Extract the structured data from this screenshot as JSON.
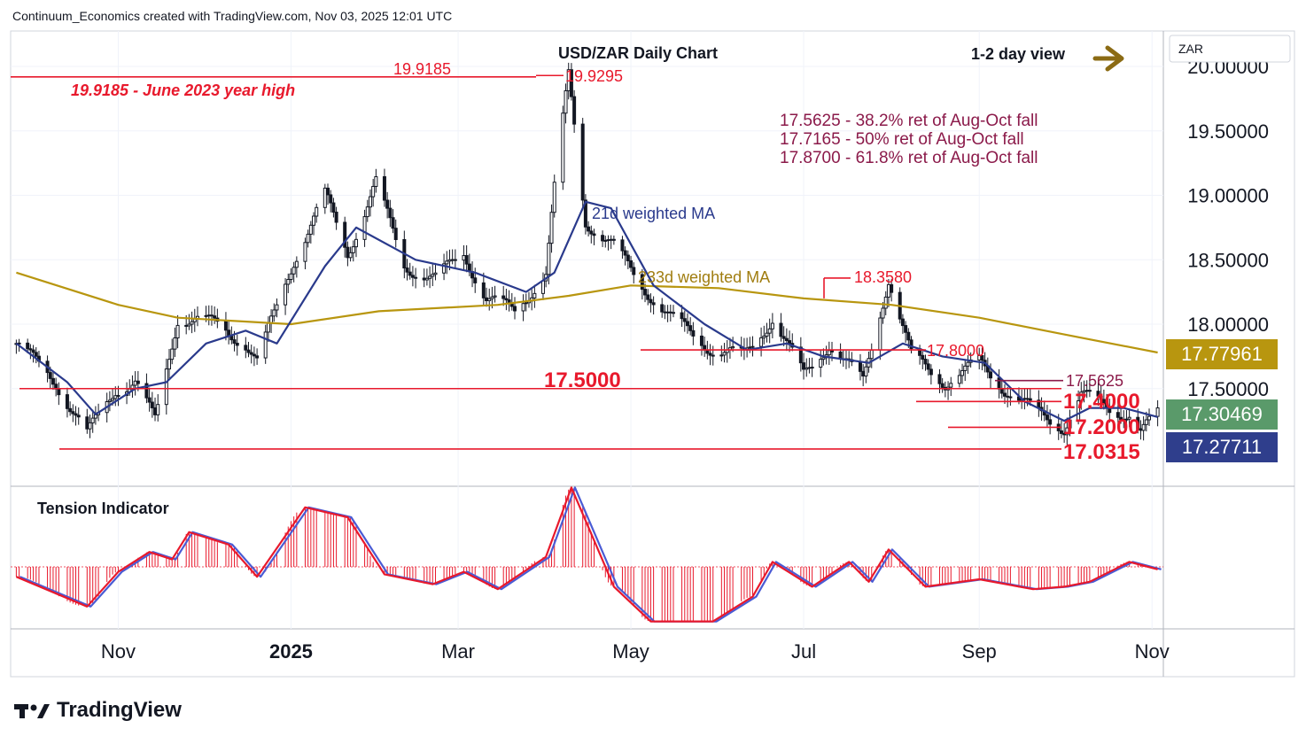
{
  "header": {
    "attribution": "Continuum_Economics created with TradingView.com, Nov 03, 2025 12:01 UTC"
  },
  "chart_data": {
    "type": "candlestick",
    "title": "USD/ZAR Daily Chart",
    "view_label": "1-2 day view",
    "currency": "ZAR",
    "y_ticks": [
      "20.00000",
      "19.50000",
      "19.00000",
      "18.50000",
      "18.00000",
      "17.50000"
    ],
    "x_ticks": [
      "Nov",
      "2025",
      "Mar",
      "May",
      "Jul",
      "Sep",
      "Nov"
    ],
    "ylim": [
      16.8,
      20.1
    ],
    "price_series": [
      {
        "date": "2024-09-26",
        "close": 17.85
      },
      {
        "date": "2024-10-10",
        "close": 17.55
      },
      {
        "date": "2024-10-21",
        "close": 17.14
      },
      {
        "date": "2024-10-31",
        "close": 17.5
      },
      {
        "date": "2024-11-07",
        "close": 17.55
      },
      {
        "date": "2024-11-14",
        "close": 17.25
      },
      {
        "date": "2024-11-22",
        "close": 18.05
      },
      {
        "date": "2024-12-06",
        "close": 18.0
      },
      {
        "date": "2024-12-16",
        "close": 17.85
      },
      {
        "date": "2024-12-20",
        "close": 17.7
      },
      {
        "date": "2025-01-02",
        "close": 18.5
      },
      {
        "date": "2025-01-13",
        "close": 19.0
      },
      {
        "date": "2025-01-21",
        "close": 18.55
      },
      {
        "date": "2025-01-31",
        "close": 19.1
      },
      {
        "date": "2025-02-10",
        "close": 18.45
      },
      {
        "date": "2025-02-21",
        "close": 18.35
      },
      {
        "date": "2025-03-03",
        "close": 18.55
      },
      {
        "date": "2025-03-11",
        "close": 18.2
      },
      {
        "date": "2025-03-21",
        "close": 18.1
      },
      {
        "date": "2025-04-01",
        "close": 18.4
      },
      {
        "date": "2025-04-04",
        "close": 19.05
      },
      {
        "date": "2025-04-09",
        "close": 19.93
      },
      {
        "date": "2025-04-15",
        "close": 18.8
      },
      {
        "date": "2025-04-25",
        "close": 18.6
      },
      {
        "date": "2025-05-05",
        "close": 18.3
      },
      {
        "date": "2025-05-15",
        "close": 18.05
      },
      {
        "date": "2025-05-30",
        "close": 17.8
      },
      {
        "date": "2025-06-10",
        "close": 17.75
      },
      {
        "date": "2025-06-20",
        "close": 18.05
      },
      {
        "date": "2025-07-01",
        "close": 17.6
      },
      {
        "date": "2025-07-10",
        "close": 17.85
      },
      {
        "date": "2025-07-22",
        "close": 17.55
      },
      {
        "date": "2025-07-31",
        "close": 18.36
      },
      {
        "date": "2025-08-08",
        "close": 17.75
      },
      {
        "date": "2025-08-20",
        "close": 17.55
      },
      {
        "date": "2025-09-01",
        "close": 17.7
      },
      {
        "date": "2025-09-10",
        "close": 17.5
      },
      {
        "date": "2025-09-22",
        "close": 17.3
      },
      {
        "date": "2025-10-01",
        "close": 17.2
      },
      {
        "date": "2025-10-07",
        "close": 17.45
      },
      {
        "date": "2025-10-17",
        "close": 17.35
      },
      {
        "date": "2025-10-24",
        "close": 17.3
      },
      {
        "date": "2025-10-28",
        "close": 17.15
      },
      {
        "date": "2025-11-03",
        "close": 17.3
      }
    ],
    "ma_21": {
      "label": "21d weighted MA",
      "color": "#2a3a8c",
      "points": [
        {
          "date": "2024-09-26",
          "value": 17.85
        },
        {
          "date": "2024-10-14",
          "value": 17.55
        },
        {
          "date": "2024-10-24",
          "value": 17.3
        },
        {
          "date": "2024-11-07",
          "value": 17.5
        },
        {
          "date": "2024-11-18",
          "value": 17.55
        },
        {
          "date": "2024-12-02",
          "value": 17.85
        },
        {
          "date": "2024-12-16",
          "value": 17.95
        },
        {
          "date": "2024-12-27",
          "value": 17.85
        },
        {
          "date": "2025-01-13",
          "value": 18.45
        },
        {
          "date": "2025-01-24",
          "value": 18.75
        },
        {
          "date": "2025-02-14",
          "value": 18.5
        },
        {
          "date": "2025-03-07",
          "value": 18.4
        },
        {
          "date": "2025-03-25",
          "value": 18.25
        },
        {
          "date": "2025-04-04",
          "value": 18.4
        },
        {
          "date": "2025-04-15",
          "value": 18.95
        },
        {
          "date": "2025-04-24",
          "value": 18.9
        },
        {
          "date": "2025-05-09",
          "value": 18.3
        },
        {
          "date": "2025-05-27",
          "value": 18.0
        },
        {
          "date": "2025-06-11",
          "value": 17.8
        },
        {
          "date": "2025-06-25",
          "value": 17.85
        },
        {
          "date": "2025-07-08",
          "value": 17.75
        },
        {
          "date": "2025-07-24",
          "value": 17.7
        },
        {
          "date": "2025-08-05",
          "value": 17.85
        },
        {
          "date": "2025-08-19",
          "value": 17.75
        },
        {
          "date": "2025-09-03",
          "value": 17.7
        },
        {
          "date": "2025-09-17",
          "value": 17.4
        },
        {
          "date": "2025-10-01",
          "value": 17.25
        },
        {
          "date": "2025-10-10",
          "value": 17.35
        },
        {
          "date": "2025-10-22",
          "value": 17.35
        },
        {
          "date": "2025-11-03",
          "value": 17.28
        }
      ]
    },
    "ma_233": {
      "label": "233d weighted MA",
      "color": "#b8960f",
      "points": [
        {
          "date": "2024-09-26",
          "value": 18.4
        },
        {
          "date": "2024-11-01",
          "value": 18.15
        },
        {
          "date": "2024-11-22",
          "value": 18.05
        },
        {
          "date": "2025-01-01",
          "value": 18.0
        },
        {
          "date": "2025-02-01",
          "value": 18.1
        },
        {
          "date": "2025-03-15",
          "value": 18.15
        },
        {
          "date": "2025-04-09",
          "value": 18.22
        },
        {
          "date": "2025-05-01",
          "value": 18.3
        },
        {
          "date": "2025-06-01",
          "value": 18.28
        },
        {
          "date": "2025-07-01",
          "value": 18.2
        },
        {
          "date": "2025-08-01",
          "value": 18.15
        },
        {
          "date": "2025-09-01",
          "value": 18.05
        },
        {
          "date": "2025-10-01",
          "value": 17.92
        },
        {
          "date": "2025-11-03",
          "value": 17.78
        }
      ]
    },
    "levels": [
      {
        "value": 19.9185,
        "label": "19.9185",
        "note": "19.9185 - June 2023 year high",
        "color": "#e8192c"
      },
      {
        "value": 19.9295,
        "label": "19.9295",
        "color": "#e8192c"
      },
      {
        "value": 18.358,
        "label": "18.3580",
        "color": "#e8192c"
      },
      {
        "value": 17.8,
        "label": "17.8000",
        "color": "#e8192c"
      },
      {
        "value": 17.5625,
        "label": "17.5625",
        "color": "#8b1a4a"
      },
      {
        "value": 17.5,
        "label": "17.5000",
        "color": "#e8192c"
      },
      {
        "value": 17.4,
        "label": "17.4000",
        "color": "#e8192c"
      },
      {
        "value": 17.2,
        "label": "17.2000",
        "color": "#e8192c"
      },
      {
        "value": 17.0315,
        "label": "17.0315",
        "color": "#e8192c"
      }
    ],
    "retracements": [
      "17.5625 - 38.2% ret of Aug-Oct fall",
      "17.7165 - 50% ret of Aug-Oct fall",
      "17.8700 - 61.8% ret of Aug-Oct fall"
    ],
    "price_labels": [
      {
        "value": 17.77961,
        "label": "17.77961",
        "color": "#b8960f"
      },
      {
        "value": 17.30469,
        "label": "17.30469",
        "color": "#5a9a6a"
      },
      {
        "value": 17.27711,
        "label": "17.27711",
        "color": "#2f3e8c"
      }
    ],
    "tension": {
      "label": "Tension Indicator",
      "points": [
        {
          "date": "2024-09-26",
          "value": -0.2
        },
        {
          "date": "2024-10-21",
          "value": -0.8
        },
        {
          "date": "2024-11-01",
          "value": -0.1
        },
        {
          "date": "2024-11-12",
          "value": 0.3
        },
        {
          "date": "2024-11-20",
          "value": 0.15
        },
        {
          "date": "2024-11-26",
          "value": 0.7
        },
        {
          "date": "2024-12-10",
          "value": 0.45
        },
        {
          "date": "2024-12-20",
          "value": -0.2
        },
        {
          "date": "2025-01-06",
          "value": 1.2
        },
        {
          "date": "2025-01-21",
          "value": 1.0
        },
        {
          "date": "2025-02-03",
          "value": -0.15
        },
        {
          "date": "2025-02-20",
          "value": -0.35
        },
        {
          "date": "2025-03-03",
          "value": -0.1
        },
        {
          "date": "2025-03-15",
          "value": -0.45
        },
        {
          "date": "2025-04-01",
          "value": 0.2
        },
        {
          "date": "2025-04-10",
          "value": 1.6
        },
        {
          "date": "2025-04-25",
          "value": -0.4
        },
        {
          "date": "2025-05-08",
          "value": -1.1
        },
        {
          "date": "2025-05-30",
          "value": -1.1
        },
        {
          "date": "2025-06-13",
          "value": -0.6
        },
        {
          "date": "2025-06-20",
          "value": 0.1
        },
        {
          "date": "2025-07-04",
          "value": -0.4
        },
        {
          "date": "2025-07-17",
          "value": 0.1
        },
        {
          "date": "2025-07-24",
          "value": -0.3
        },
        {
          "date": "2025-07-31",
          "value": 0.35
        },
        {
          "date": "2025-08-13",
          "value": -0.4
        },
        {
          "date": "2025-09-01",
          "value": -0.25
        },
        {
          "date": "2025-09-20",
          "value": -0.45
        },
        {
          "date": "2025-10-01",
          "value": -0.4
        },
        {
          "date": "2025-10-10",
          "value": -0.3
        },
        {
          "date": "2025-10-24",
          "value": 0.1
        },
        {
          "date": "2025-11-03",
          "value": -0.05
        }
      ]
    }
  }
}
